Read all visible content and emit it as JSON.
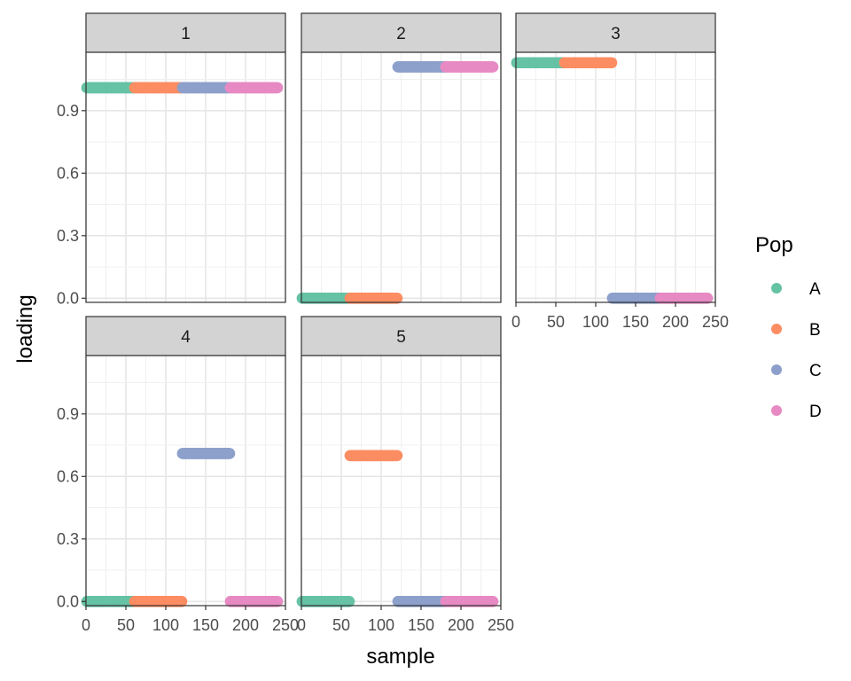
{
  "chart_data": {
    "type": "scatter",
    "facet_by": "factor",
    "facets": [
      "1",
      "2",
      "3",
      "4",
      "5"
    ],
    "xlabel": "sample",
    "ylabel": "loading",
    "xlim": [
      0,
      250
    ],
    "ylim": [
      -0.02,
      1.18
    ],
    "x_ticks": [
      "0",
      "50",
      "100",
      "150",
      "200",
      "250"
    ],
    "y_ticks": [
      "0.0",
      "0.3",
      "0.6",
      "0.9"
    ],
    "grid": true,
    "legend": {
      "title": "Pop",
      "position": "right",
      "entries": [
        {
          "label": "A",
          "color": "#66c2a5"
        },
        {
          "label": "B",
          "color": "#fc8d62"
        },
        {
          "label": "C",
          "color": "#8da0cb"
        },
        {
          "label": "D",
          "color": "#e78ac3"
        }
      ]
    },
    "samples_per_population": 60,
    "populations": [
      {
        "name": "A",
        "sample_range": [
          1,
          60
        ]
      },
      {
        "name": "B",
        "sample_range": [
          61,
          120
        ]
      },
      {
        "name": "C",
        "sample_range": [
          121,
          180
        ]
      },
      {
        "name": "D",
        "sample_range": [
          181,
          240
        ]
      }
    ],
    "loadings": [
      {
        "facet": "1",
        "A": 1.01,
        "B": 1.01,
        "C": 1.01,
        "D": 1.01
      },
      {
        "facet": "2",
        "A": 0.0,
        "B": 0.0,
        "C": 1.11,
        "D": 1.11
      },
      {
        "facet": "3",
        "A": 1.13,
        "B": 1.13,
        "C": 0.0,
        "D": 0.0
      },
      {
        "facet": "4",
        "A": 0.0,
        "B": 0.0,
        "C": 0.71,
        "D": 0.0
      },
      {
        "facet": "5",
        "A": 0.0,
        "B": 0.7,
        "C": 0.0,
        "D": 0.0
      }
    ]
  }
}
